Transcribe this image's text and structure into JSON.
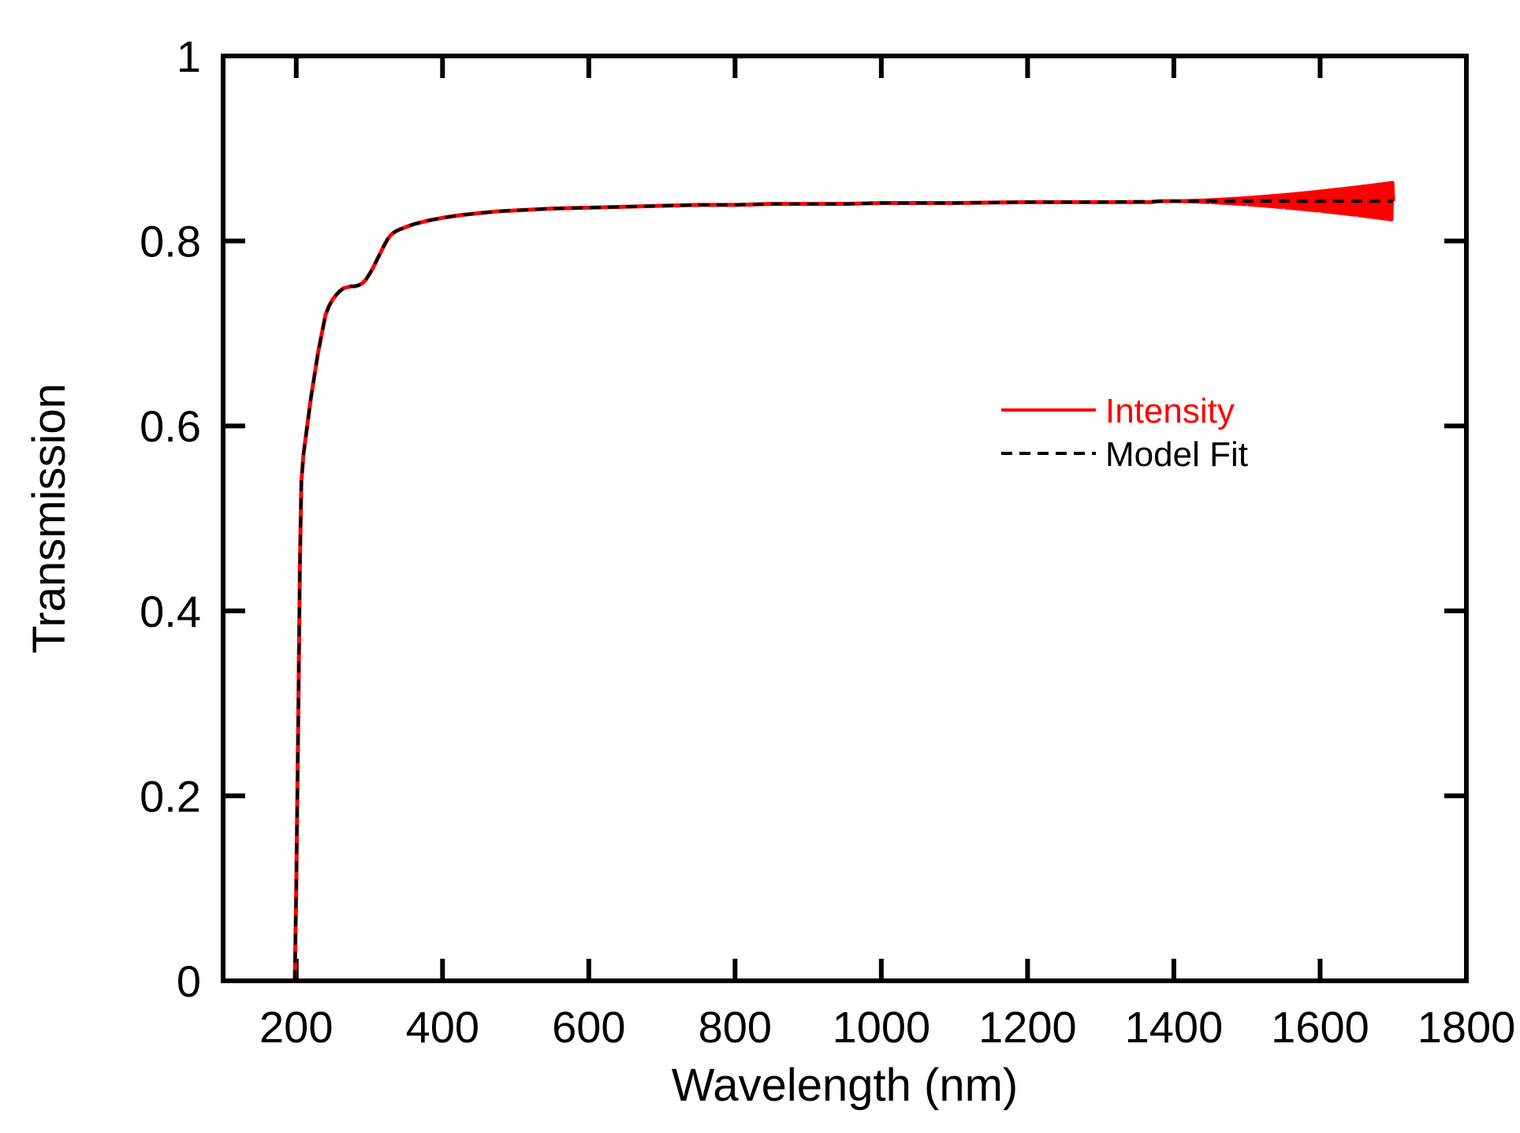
{
  "chart_data": {
    "type": "line",
    "xlabel": "Wavelength (nm)",
    "ylabel": "Transmission",
    "xlim": [
      100,
      1800
    ],
    "ylim": [
      0,
      1
    ],
    "x_ticks": [
      200,
      400,
      600,
      800,
      1000,
      1200,
      1400,
      1600,
      1800
    ],
    "y_ticks": [
      0,
      0.2,
      0.4,
      0.6,
      0.8,
      1
    ],
    "y_tick_labels": [
      "0",
      "0.2",
      "0.4",
      "0.6",
      "0.8",
      "1"
    ],
    "grid": false,
    "legend_position": "center-right",
    "series": [
      {
        "name": "Intensity",
        "color": "#ff0000",
        "style": "solid",
        "x": [
          198,
          200,
          203,
          205,
          207,
          210,
          215,
          220,
          225,
          230,
          235,
          240,
          245,
          250,
          255,
          260,
          265,
          270,
          275,
          280,
          285,
          290,
          295,
          300,
          305,
          310,
          315,
          320,
          325,
          330,
          335,
          340,
          350,
          360,
          370,
          380,
          400,
          425,
          450,
          475,
          500,
          550,
          600,
          650,
          700,
          750,
          800,
          850,
          875,
          900,
          950,
          1000,
          1100,
          1200,
          1300,
          1350,
          1360,
          1370,
          1380,
          1400,
          1450,
          1500,
          1550,
          1600,
          1650,
          1700
        ],
        "y": [
          0.0,
          0.1,
          0.3,
          0.45,
          0.54,
          0.57,
          0.6,
          0.63,
          0.655,
          0.68,
          0.7,
          0.72,
          0.73,
          0.737,
          0.742,
          0.746,
          0.749,
          0.75,
          0.751,
          0.751,
          0.752,
          0.754,
          0.758,
          0.764,
          0.771,
          0.779,
          0.787,
          0.795,
          0.802,
          0.807,
          0.81,
          0.812,
          0.815,
          0.818,
          0.82,
          0.822,
          0.825,
          0.828,
          0.83,
          0.832,
          0.833,
          0.835,
          0.836,
          0.837,
          0.838,
          0.839,
          0.839,
          0.84,
          0.84,
          0.84,
          0.84,
          0.841,
          0.841,
          0.842,
          0.842,
          0.842,
          0.842,
          0.842,
          0.843,
          0.843,
          0.843,
          0.843,
          0.843,
          0.843,
          0.843,
          0.843
        ],
        "noise_note": "oscillation amplitude grows above ~1400 nm to about ±0.02 near 1700 nm"
      },
      {
        "name": "Model Fit",
        "color": "#000000",
        "style": "dashed",
        "x": [
          198,
          200,
          203,
          205,
          207,
          210,
          215,
          220,
          225,
          230,
          235,
          240,
          245,
          250,
          255,
          260,
          265,
          270,
          275,
          280,
          285,
          290,
          295,
          300,
          305,
          310,
          315,
          320,
          325,
          330,
          335,
          340,
          350,
          360,
          370,
          380,
          400,
          425,
          450,
          475,
          500,
          550,
          600,
          650,
          700,
          750,
          800,
          850,
          900,
          950,
          1000,
          1100,
          1200,
          1300,
          1400,
          1500,
          1600,
          1700
        ],
        "y": [
          0.0,
          0.1,
          0.3,
          0.45,
          0.54,
          0.57,
          0.6,
          0.63,
          0.655,
          0.68,
          0.7,
          0.72,
          0.73,
          0.737,
          0.742,
          0.746,
          0.749,
          0.75,
          0.751,
          0.751,
          0.752,
          0.754,
          0.758,
          0.764,
          0.771,
          0.779,
          0.787,
          0.795,
          0.802,
          0.807,
          0.81,
          0.812,
          0.815,
          0.818,
          0.82,
          0.822,
          0.825,
          0.828,
          0.83,
          0.832,
          0.833,
          0.835,
          0.836,
          0.837,
          0.838,
          0.839,
          0.839,
          0.84,
          0.84,
          0.84,
          0.841,
          0.841,
          0.842,
          0.842,
          0.843,
          0.843,
          0.843,
          0.843
        ]
      }
    ]
  }
}
